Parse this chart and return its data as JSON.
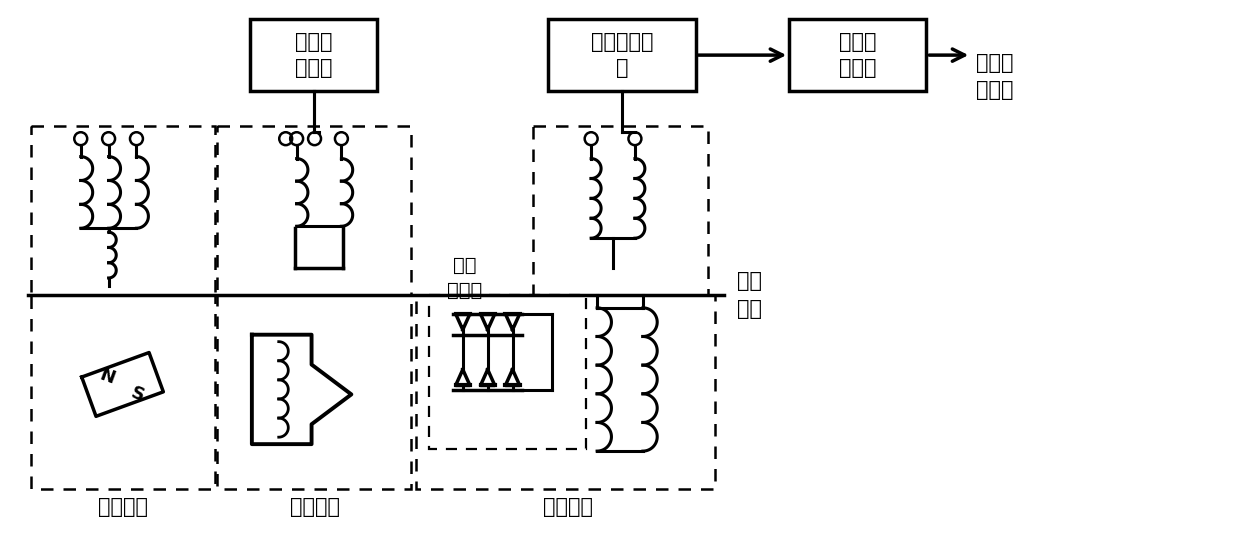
{
  "background_color": "#ffffff",
  "stator_label": "定子",
  "rotor_label": "转子",
  "fu_exciter_label": "副励磁机",
  "main_exciter_label": "主励磁机",
  "main_gen_label": "主发电机",
  "ac_source_label": "单相交\n流电源",
  "signal_collect_label": "信号采集模\n块",
  "signal_process_label": "信号处\n理模块",
  "output_label": "转子位\n置信息",
  "rotating_rect_label": "旋转\n整流器",
  "font_size": 15,
  "lw_main": 2.2,
  "lw_dashed": 1.8
}
